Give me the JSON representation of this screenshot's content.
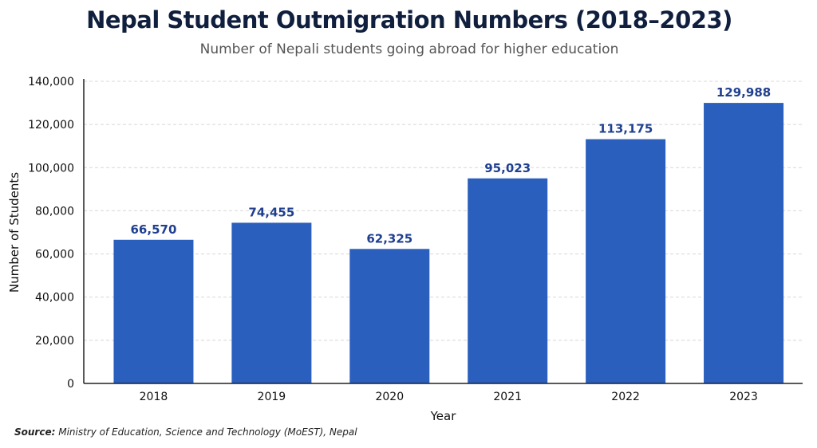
{
  "chart_data": {
    "type": "bar",
    "title": "Nepal Student Outmigration Numbers (2018–2023)",
    "subtitle": "Number of Nepali students going abroad for higher education",
    "xlabel": "Year",
    "ylabel": "Number of Students",
    "categories": [
      "2018",
      "2019",
      "2020",
      "2021",
      "2022",
      "2023"
    ],
    "values": [
      66570,
      74455,
      62325,
      95023,
      113175,
      129988
    ],
    "data_labels": [
      "66,570",
      "74,455",
      "62,325",
      "95,023",
      "113,175",
      "129,988"
    ],
    "ylim": [
      0,
      140000
    ],
    "yticks": [
      0,
      20000,
      40000,
      60000,
      80000,
      100000,
      120000,
      140000
    ],
    "ytick_labels": [
      "0",
      "20,000",
      "40,000",
      "60,000",
      "80,000",
      "100,000",
      "120,000",
      "140,000"
    ],
    "grid": "horizontal dashed",
    "colors": {
      "bar": "#2a5fbd",
      "label": "#1f3f8f"
    }
  },
  "source": {
    "label": "Source:",
    "text": " Ministry of Education, Science and Technology (MoEST), Nepal"
  }
}
